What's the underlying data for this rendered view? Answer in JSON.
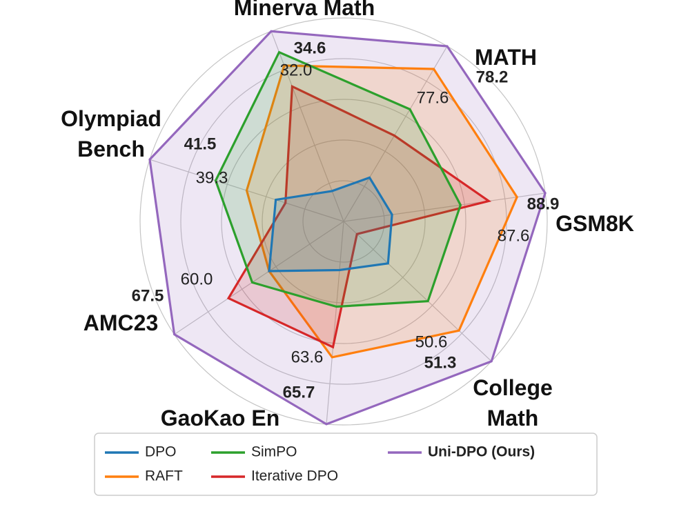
{
  "chart_data": {
    "type": "radar",
    "title": "",
    "axes": [
      "GSM8K",
      "MATH",
      "Minerva Math",
      "Olympiad Bench",
      "AMC23",
      "GaoKao En",
      "College Math"
    ],
    "axis_label_lines": [
      [
        "GSM8K"
      ],
      [
        "MATH"
      ],
      [
        "Minerva Math"
      ],
      [
        "Olympiad",
        "Bench"
      ],
      [
        "AMC23"
      ],
      [
        "GaoKao En"
      ],
      [
        "College",
        "Math"
      ]
    ],
    "radial_range": [
      0,
      1
    ],
    "series": [
      {
        "name": "DPO",
        "color": "#1f77b4",
        "values": [
          0.24,
          0.25,
          0.16,
          0.35,
          0.44,
          0.24,
          0.3
        ],
        "bold": false
      },
      {
        "name": "SimPO",
        "color": "#2ca02c",
        "values": [
          0.58,
          0.64,
          0.89,
          0.66,
          0.54,
          0.42,
          0.57
        ],
        "bold": false
      },
      {
        "name": "RAFT",
        "color": "#ff7f0e",
        "values": [
          0.86,
          0.87,
          0.82,
          0.5,
          0.44,
          0.67,
          0.78
        ],
        "bold": false
      },
      {
        "name": "Iterative DPO",
        "color": "#d62728",
        "values": [
          0.72,
          0.49,
          0.71,
          0.3,
          0.68,
          0.62,
          0.09
        ],
        "bold": false
      },
      {
        "name": "Uni-DPO (Ours)",
        "color": "#9467bd",
        "values": [
          1.0,
          1.0,
          1.0,
          1.0,
          1.0,
          1.0,
          1.0
        ],
        "bold": true
      }
    ],
    "value_labels": [
      {
        "axis": "GSM8K",
        "second": "87.6",
        "best": "88.9"
      },
      {
        "axis": "MATH",
        "second": "77.6",
        "best": "78.2"
      },
      {
        "axis": "Minerva Math",
        "second": "32.0",
        "best": "34.6"
      },
      {
        "axis": "Olympiad Bench",
        "second": "39.3",
        "best": "41.5"
      },
      {
        "axis": "AMC23",
        "second": "60.0",
        "best": "67.5"
      },
      {
        "axis": "GaoKao En",
        "second": "63.6",
        "best": "65.7"
      },
      {
        "axis": "College Math",
        "second": "50.6",
        "best": "51.3"
      }
    ],
    "grid": true,
    "legend": {
      "placement": "bottom-center",
      "entries": [
        "DPO",
        "RAFT",
        "SimPO",
        "Iterative DPO",
        "Uni-DPO (Ours)"
      ]
    }
  }
}
